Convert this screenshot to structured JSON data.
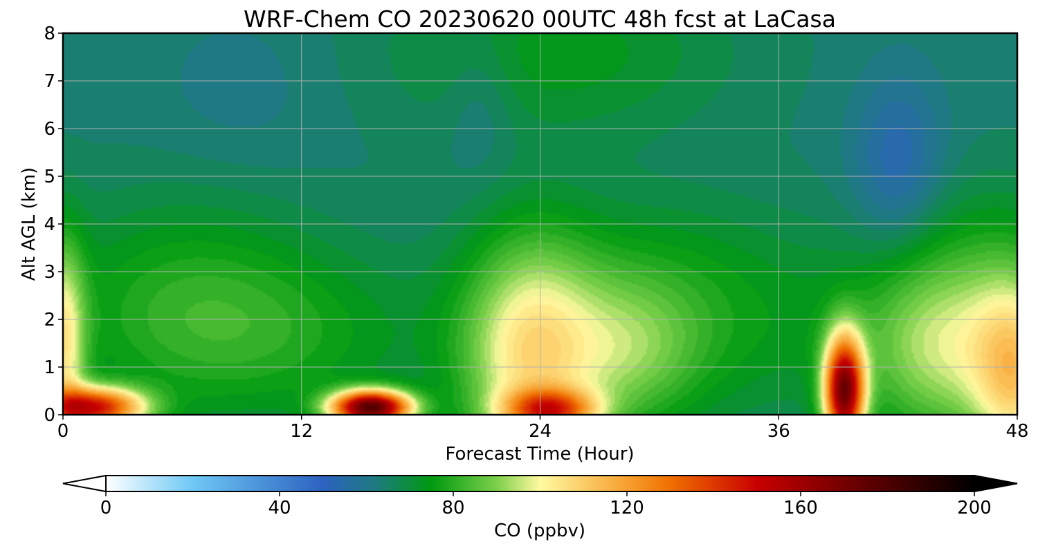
{
  "chart_data": {
    "type": "heatmap",
    "title": "WRF-Chem CO  20230620 00UTC 48h fcst at LaCasa",
    "xlabel": "Forecast Time (Hour)",
    "ylabel": "Alt AGL (km)",
    "xlim": [
      0,
      48
    ],
    "ylim": [
      0,
      8
    ],
    "xticks": [
      "0",
      "12",
      "24",
      "36",
      "48"
    ],
    "yticks": [
      "0",
      "1",
      "2",
      "3",
      "4",
      "5",
      "6",
      "7",
      "8"
    ],
    "grid": true,
    "colorbar": {
      "label": "CO  (ppbv)",
      "min": 0,
      "max": 200,
      "extend": "both",
      "ticks": [
        "0",
        "40",
        "80",
        "120",
        "160",
        "200"
      ],
      "stops": [
        {
          "v": 0,
          "c": "#ffffff"
        },
        {
          "v": 20,
          "c": "#6ec8f5"
        },
        {
          "v": 50,
          "c": "#2c62c0"
        },
        {
          "v": 62,
          "c": "#1e7a80"
        },
        {
          "v": 75,
          "c": "#009a10"
        },
        {
          "v": 90,
          "c": "#7cd04a"
        },
        {
          "v": 100,
          "c": "#fffaa0"
        },
        {
          "v": 120,
          "c": "#f7a030"
        },
        {
          "v": 130,
          "c": "#f07000"
        },
        {
          "v": 150,
          "c": "#c80000"
        },
        {
          "v": 175,
          "c": "#600000"
        },
        {
          "v": 200,
          "c": "#000000"
        }
      ]
    },
    "background_value": 64,
    "features": [
      {
        "t": 25,
        "z": 7.6,
        "st": 6,
        "sz": 1.3,
        "a": 10,
        "where": "upper green core"
      },
      {
        "t": 42,
        "z": 5.2,
        "st": 1.6,
        "sz": 1.3,
        "a": -12,
        "where": "blue pocket"
      },
      {
        "t": 21,
        "z": 6.6,
        "st": 1.2,
        "sz": 1.1,
        "a": -5,
        "where": "blue streak"
      },
      {
        "t": 9,
        "z": 6.8,
        "st": 3,
        "sz": 1.2,
        "a": -3,
        "where": "upper left pocket"
      },
      {
        "t": 6,
        "z": 2.4,
        "st": 5,
        "sz": 1.6,
        "a": 12,
        "where": "low-level green"
      },
      {
        "t": 11,
        "z": 1.6,
        "st": 6,
        "sz": 1.3,
        "a": 10,
        "where": "low-level green"
      },
      {
        "t": 33,
        "z": 1.8,
        "st": 6,
        "sz": 1.5,
        "a": 10,
        "where": "low-level green"
      },
      {
        "t": 29,
        "z": 3.2,
        "st": 5,
        "sz": 1.2,
        "a": 5,
        "where": "low-level green"
      },
      {
        "t": 47,
        "z": 3.5,
        "st": 4,
        "sz": 1.3,
        "a": 6,
        "where": "right green"
      },
      {
        "t": 23.5,
        "z": 1.2,
        "st": 2.4,
        "sz": 1.7,
        "a": 38,
        "where": "hour-24 plume"
      },
      {
        "t": 24.5,
        "z": 0.1,
        "st": 1.6,
        "sz": 0.3,
        "a": 55,
        "where": "surface max near 24 h"
      },
      {
        "t": 28.5,
        "z": 1.3,
        "st": 2.5,
        "sz": 1.1,
        "a": 18,
        "where": "secondary plume"
      },
      {
        "t": 15.5,
        "z": 0.15,
        "st": 1.4,
        "sz": 0.25,
        "a": 110,
        "where": "surface max near 15 h"
      },
      {
        "t": 39.3,
        "z": 0.5,
        "st": 0.7,
        "sz": 0.8,
        "a": 100,
        "where": "column max near 39 h"
      },
      {
        "t": 44.5,
        "z": 1.4,
        "st": 3,
        "sz": 1.4,
        "a": 30,
        "where": "right plume"
      },
      {
        "t": 48,
        "z": 0.8,
        "st": 1.5,
        "sz": 1.4,
        "a": 35,
        "where": "right edge"
      },
      {
        "t": 1.5,
        "z": 0.15,
        "st": 1.8,
        "sz": 0.3,
        "a": 80,
        "where": "surface max near 1 h"
      },
      {
        "t": 0,
        "z": 1.5,
        "st": 0.8,
        "sz": 1.5,
        "a": 35,
        "where": "left edge"
      }
    ]
  }
}
